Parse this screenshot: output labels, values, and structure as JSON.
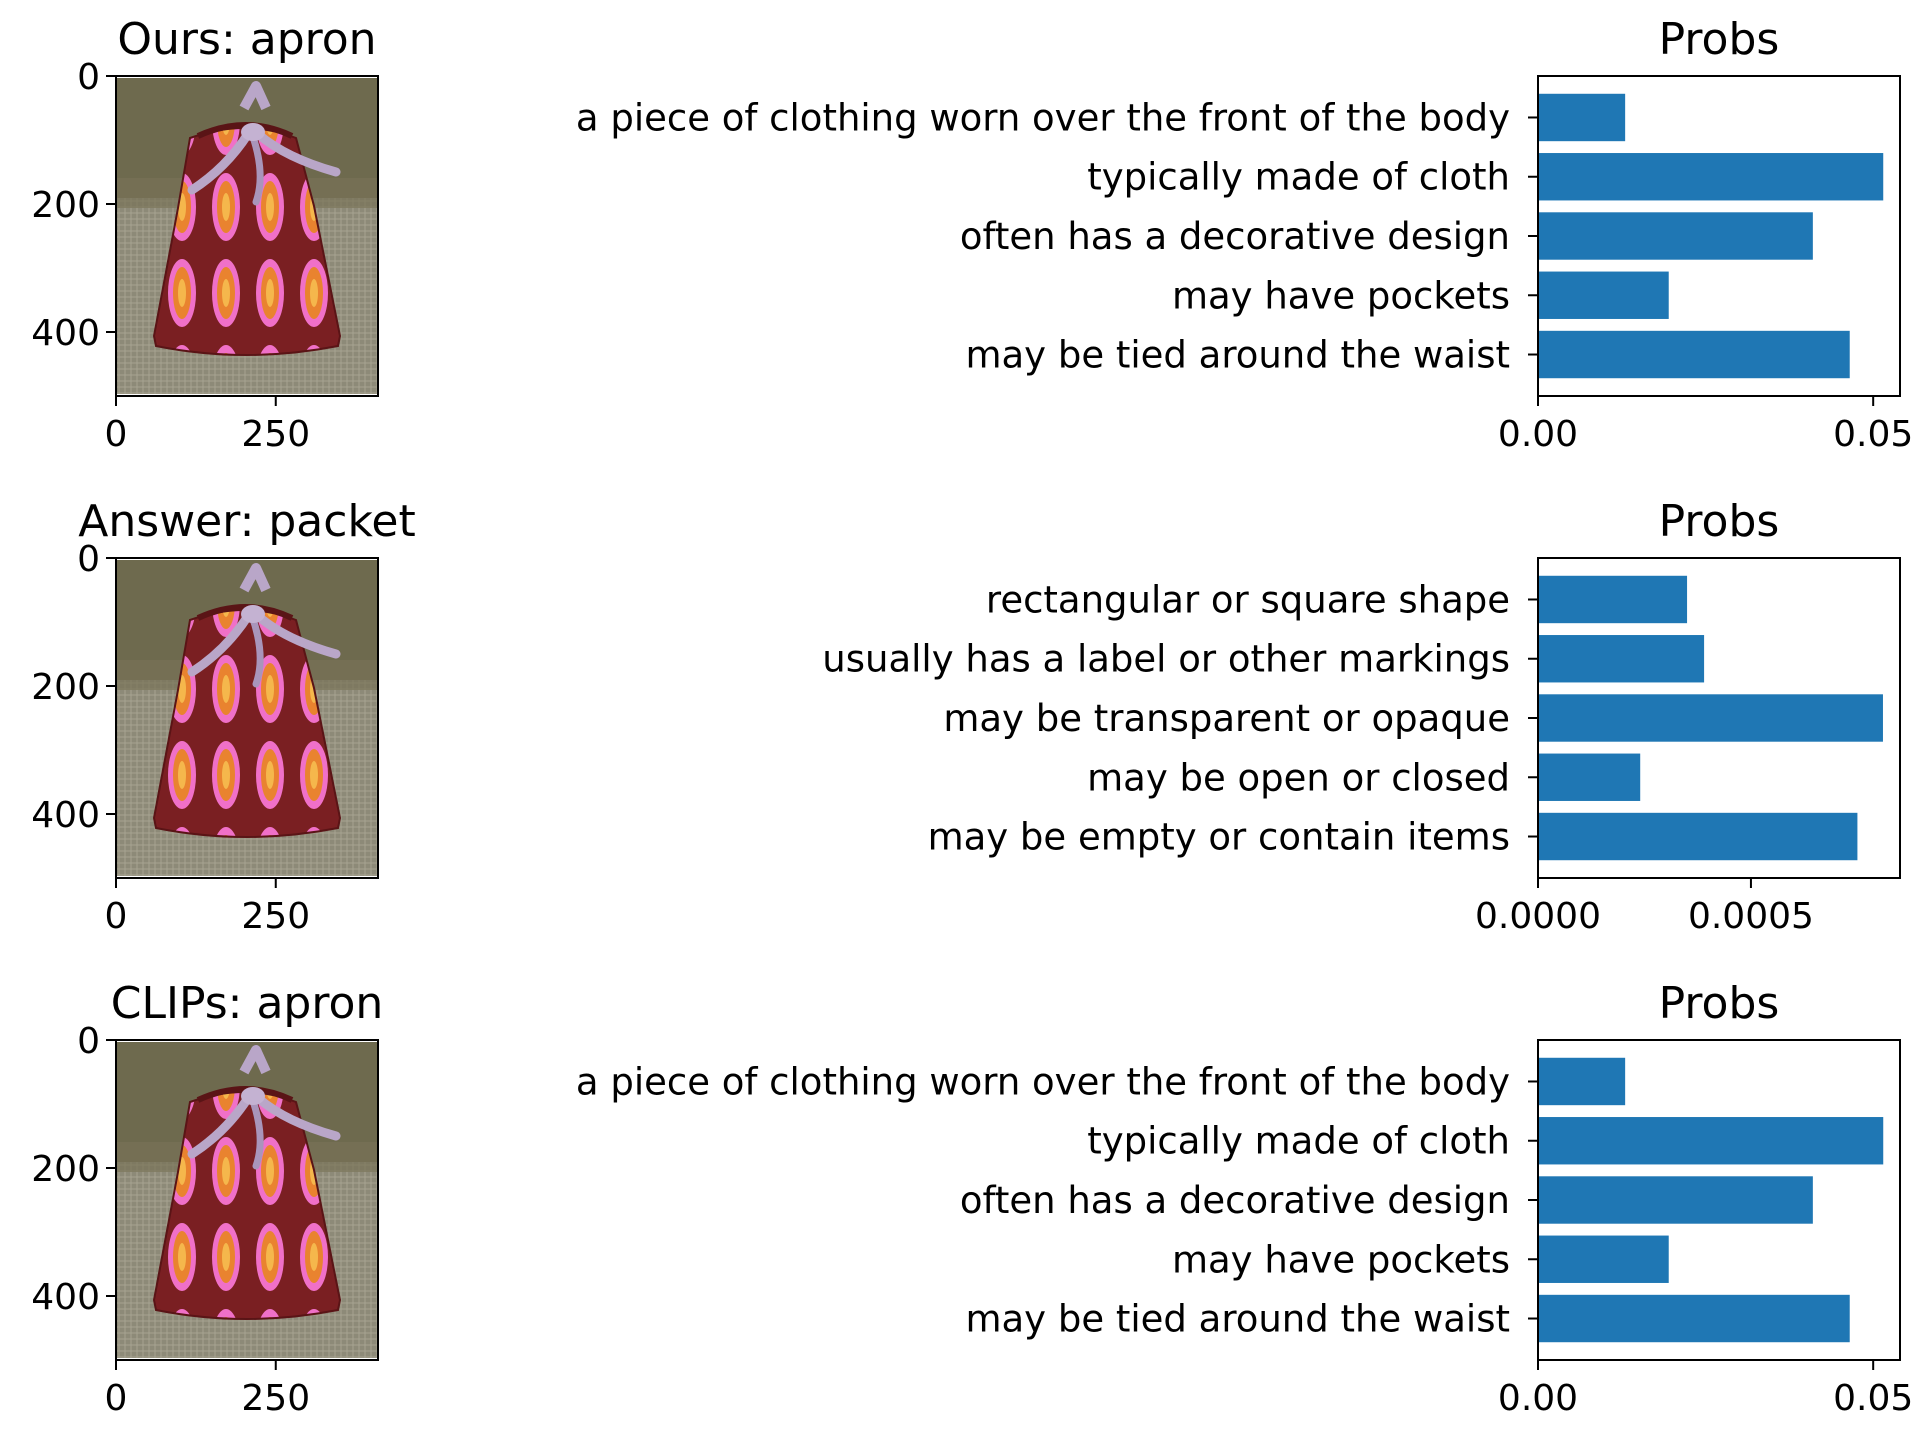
{
  "chart_data": [
    {
      "type": "image",
      "title": "Ours: apron",
      "yticks": [
        "0",
        "200",
        "400"
      ],
      "xticks": [
        "0",
        "250"
      ],
      "ytick_values": [
        0,
        200,
        400
      ],
      "xtick_values": [
        0,
        250
      ],
      "xlim": [
        0,
        410
      ],
      "ylim": [
        0,
        500
      ]
    },
    {
      "type": "bar",
      "orientation": "horizontal",
      "title": "Probs",
      "categories": [
        "a piece of clothing worn over the front of the body",
        "typically made of cloth",
        "often has a decorative design",
        "may have pockets",
        "may be tied around the waist"
      ],
      "values": [
        0.013,
        0.0515,
        0.041,
        0.0195,
        0.0465
      ],
      "xticks": [
        "0.00",
        "0.05"
      ],
      "xtick_values": [
        0,
        0.05
      ],
      "xlim": [
        0,
        0.054
      ],
      "bar_color": "#1f77b4"
    },
    {
      "type": "image",
      "title": "Answer: packet",
      "yticks": [
        "0",
        "200",
        "400"
      ],
      "xticks": [
        "0",
        "250"
      ],
      "ytick_values": [
        0,
        200,
        400
      ],
      "xtick_values": [
        0,
        250
      ],
      "xlim": [
        0,
        410
      ],
      "ylim": [
        0,
        500
      ]
    },
    {
      "type": "bar",
      "orientation": "horizontal",
      "title": "Probs",
      "categories": [
        "rectangular or square shape",
        "usually has a label or other markings",
        "may be transparent or opaque",
        "may be open or closed",
        "may be empty or contain items"
      ],
      "values": [
        0.00035,
        0.00039,
        0.00081,
        0.00024,
        0.00075
      ],
      "xticks": [
        "0.0000",
        "0.0005"
      ],
      "xtick_values": [
        0,
        0.0005
      ],
      "xlim": [
        0,
        0.00085
      ],
      "bar_color": "#1f77b4"
    },
    {
      "type": "image",
      "title": "CLIPs: apron",
      "yticks": [
        "0",
        "200",
        "400"
      ],
      "xticks": [
        "0",
        "250"
      ],
      "ytick_values": [
        0,
        200,
        400
      ],
      "xtick_values": [
        0,
        250
      ],
      "xlim": [
        0,
        410
      ],
      "ylim": [
        0,
        500
      ]
    },
    {
      "type": "bar",
      "orientation": "horizontal",
      "title": "Probs",
      "categories": [
        "a piece of clothing worn over the front of the body",
        "typically made of cloth",
        "often has a decorative design",
        "may have pockets",
        "may be tied around the waist"
      ],
      "values": [
        0.013,
        0.0515,
        0.041,
        0.0195,
        0.0465
      ],
      "xticks": [
        "0.00",
        "0.05"
      ],
      "xtick_values": [
        0,
        0.05
      ],
      "xlim": [
        0,
        0.054
      ],
      "bar_color": "#1f77b4"
    }
  ]
}
